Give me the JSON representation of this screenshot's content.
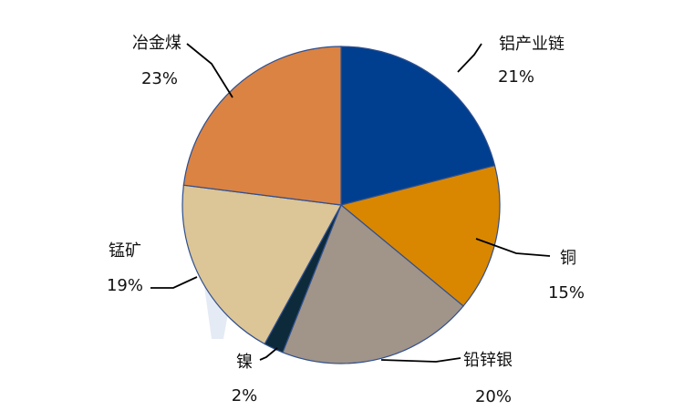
{
  "chart_data": {
    "type": "pie",
    "categories": [
      "铝产业链",
      "铜",
      "铅锌银",
      "镍",
      "锰矿",
      "冶金煤"
    ],
    "values": [
      21,
      15,
      20,
      2,
      19,
      23
    ],
    "value_labels": [
      "21%",
      "15%",
      "20%",
      "2%",
      "19%",
      "23%"
    ],
    "colors": [
      "#003f8f",
      "#d98700",
      "#a19488",
      "#0d2a3a",
      "#dcc596",
      "#db8343"
    ],
    "start": "12 o'clock",
    "direction": "clockwise",
    "legend": "none"
  }
}
